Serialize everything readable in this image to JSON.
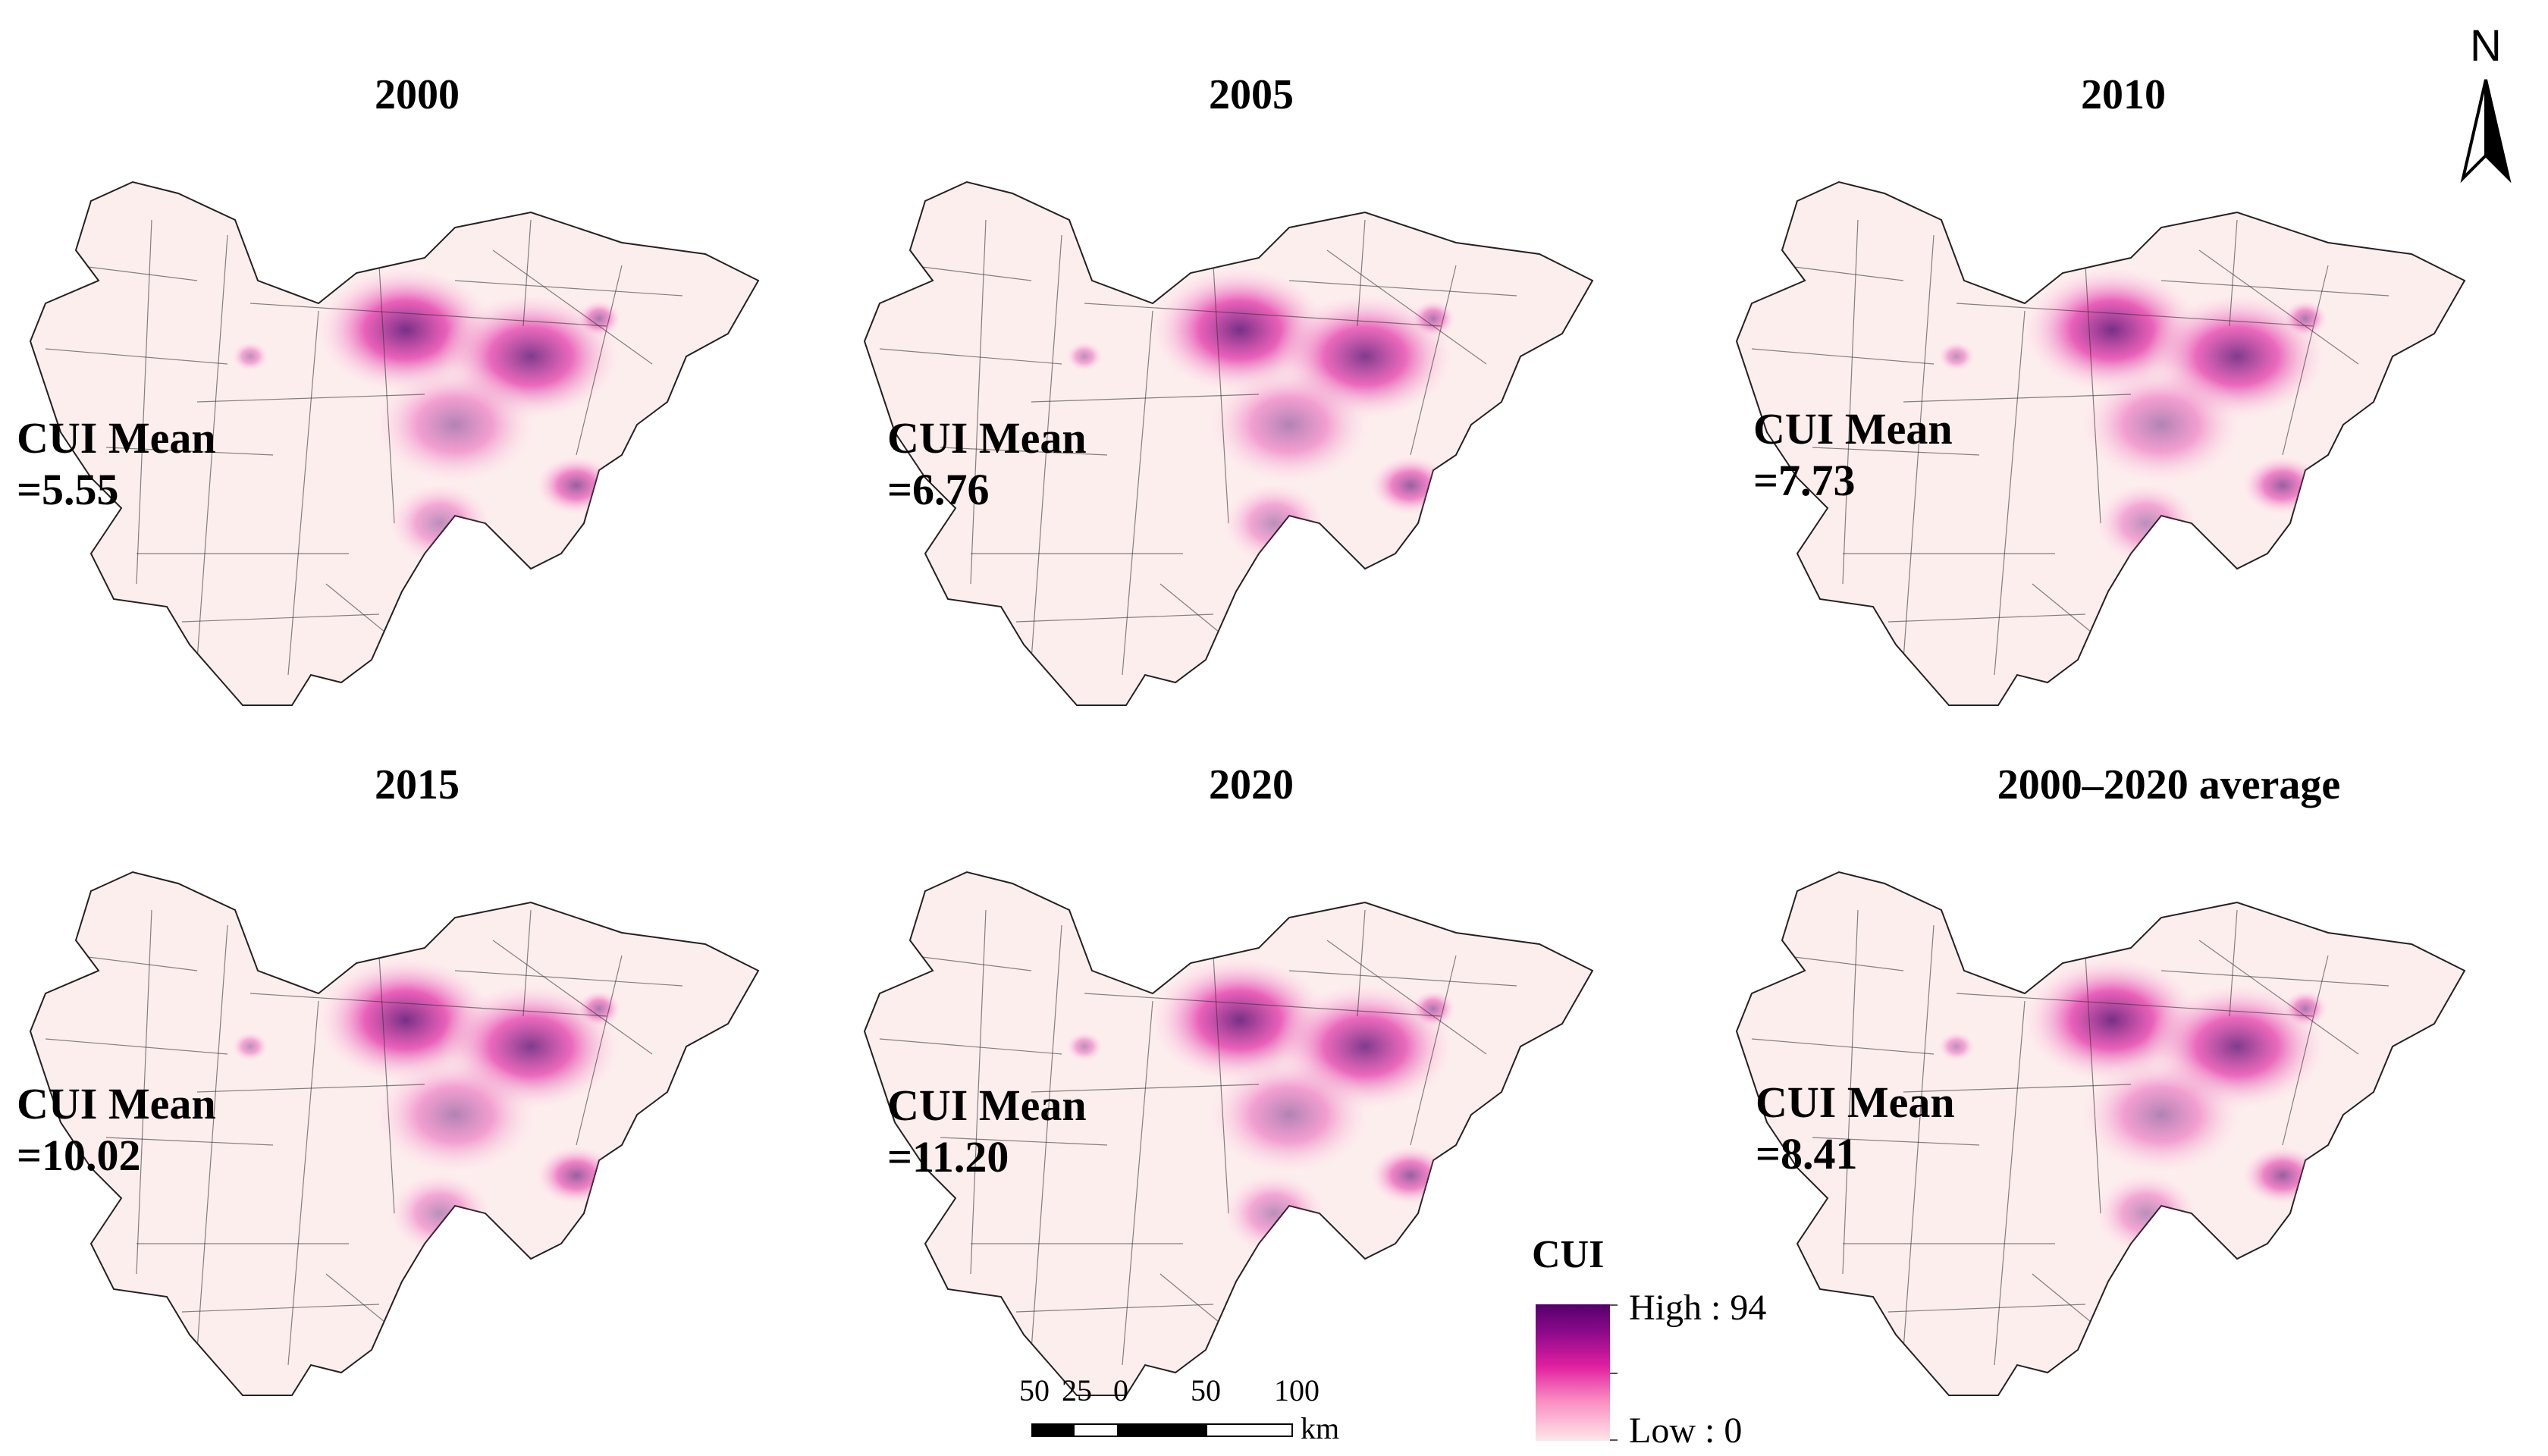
{
  "figure": {
    "panels": [
      {
        "title": "2000",
        "mean_label": "CUI Mean",
        "mean_value": "=5.55"
      },
      {
        "title": "2005",
        "mean_label": "CUI Mean",
        "mean_value": "=6.76"
      },
      {
        "title": "2010",
        "mean_label": "CUI Mean",
        "mean_value": "=7.73"
      },
      {
        "title": "2015",
        "mean_label": "CUI Mean",
        "mean_value": "=10.02"
      },
      {
        "title": "2020",
        "mean_label": "CUI Mean",
        "mean_value": "=11.20"
      },
      {
        "title": "2000–2020 average",
        "mean_label": "CUI Mean",
        "mean_value": "=8.41"
      }
    ],
    "north_arrow": {
      "label": "N"
    },
    "legend": {
      "title": "CUI",
      "high_label": "High : 94",
      "low_label": "Low : 0",
      "color_high": "#54006c",
      "color_mid": "#e01ea0",
      "color_low": "#fde7ea"
    },
    "scale_bar": {
      "labels": [
        "50",
        "25",
        "0",
        "50",
        "100"
      ],
      "unit": "km"
    }
  }
}
